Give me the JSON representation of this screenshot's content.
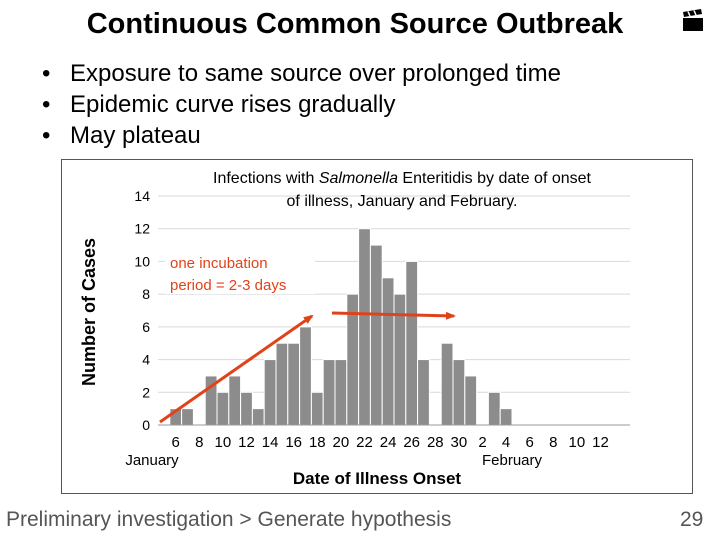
{
  "slide": {
    "title": "Continuous Common Source Outbreak",
    "bullets": [
      "Exposure to same source over prolonged time",
      "Epidemic curve rises gradually",
      "May plateau"
    ],
    "footer": "Preliminary investigation > Generate hypothesis",
    "page_number": "29",
    "icon": "movie-clapper-icon"
  },
  "chart_data": {
    "type": "bar",
    "title_parts": [
      "Infections with ",
      "Salmonella",
      " Enteritidis by date of onset"
    ],
    "title_line2": "of illness, January and February.",
    "xlabel": "Date of Illness Onset",
    "ylabel": "Number of Cases",
    "ylim": [
      0,
      14
    ],
    "yticks": [
      0,
      2,
      4,
      6,
      8,
      10,
      12,
      14
    ],
    "grid": true,
    "bar_color": "#8c8c8c",
    "annotation": {
      "line1": "one incubation",
      "line2": "period = 2-3 days",
      "color": "#e0421a"
    },
    "month_labels": [
      "January",
      "February"
    ],
    "tick_labels": [
      "6",
      "8",
      "10",
      "12",
      "14",
      "16",
      "18",
      "20",
      "22",
      "24",
      "26",
      "28",
      "30",
      "2",
      "4",
      "6",
      "8",
      "10",
      "12"
    ],
    "categories": [
      "Jan 5",
      "Jan 6",
      "Jan 7",
      "Jan 8",
      "Jan 9",
      "Jan 10",
      "Jan 11",
      "Jan 12",
      "Jan 13",
      "Jan 14",
      "Jan 15",
      "Jan 16",
      "Jan 17",
      "Jan 18",
      "Jan 19",
      "Jan 20",
      "Jan 21",
      "Jan 22",
      "Jan 23",
      "Jan 24",
      "Jan 25",
      "Jan 26",
      "Jan 27",
      "Jan 28",
      "Jan 29",
      "Jan 30",
      "Jan 31",
      "Feb 1",
      "Feb 2",
      "Feb 3",
      "Feb 4",
      "Feb 5",
      "Feb 6",
      "Feb 7",
      "Feb 8",
      "Feb 9",
      "Feb 10",
      "Feb 11",
      "Feb 12",
      "Feb 13"
    ],
    "values": [
      0,
      1,
      1,
      0,
      3,
      2,
      3,
      2,
      1,
      4,
      5,
      5,
      6,
      2,
      4,
      4,
      8,
      12,
      11,
      9,
      8,
      10,
      4,
      0,
      5,
      4,
      3,
      0,
      2,
      1,
      0,
      0,
      0,
      0,
      0,
      0,
      0,
      0,
      0,
      0
    ]
  }
}
